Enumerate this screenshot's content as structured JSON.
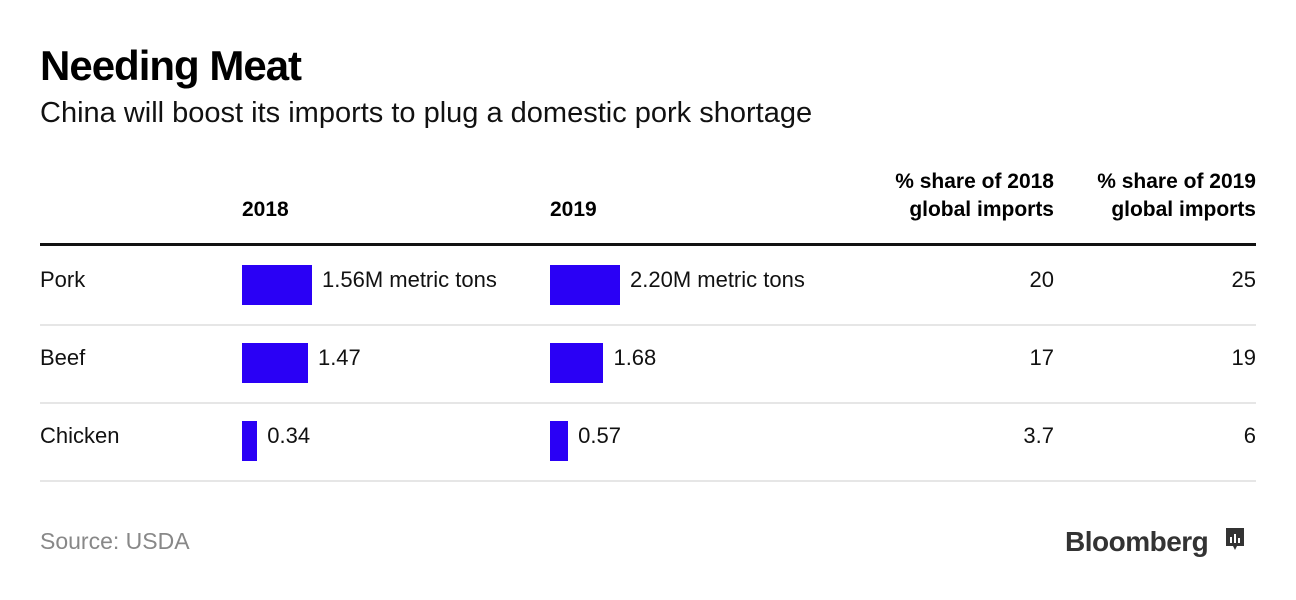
{
  "title": "Needing Meat",
  "subtitle": "China will boost its imports to plug a domestic pork shortage",
  "source": "Source: USDA",
  "logo": "Bloomberg",
  "colors": {
    "bar": "#2a00f5",
    "header_rule": "#111111",
    "row_rule": "#e6e6e6"
  },
  "chart_data": {
    "type": "table",
    "columns": [
      "",
      "2018",
      "2019",
      "% share of 2018 global imports",
      "% share of 2019 global imports"
    ],
    "column_lines": [
      [
        "% share of 2018",
        "global imports"
      ],
      [
        "% share of 2019",
        "global imports"
      ]
    ],
    "rows": [
      {
        "label": "Pork",
        "v2018": 1.56,
        "v2018_label": "1.56M metric tons",
        "v2019": 2.2,
        "v2019_label": "2.20M metric tons",
        "share2018": "20",
        "share2019": "25"
      },
      {
        "label": "Beef",
        "v2018": 1.47,
        "v2018_label": "1.47",
        "v2019": 1.68,
        "v2019_label": "1.68",
        "share2018": "17",
        "share2019": "19"
      },
      {
        "label": "Chicken",
        "v2018": 0.34,
        "v2018_label": "0.34",
        "v2019": 0.57,
        "v2019_label": "0.57",
        "share2018": "3.7",
        "share2019": "6"
      }
    ],
    "units": "M metric tons"
  }
}
